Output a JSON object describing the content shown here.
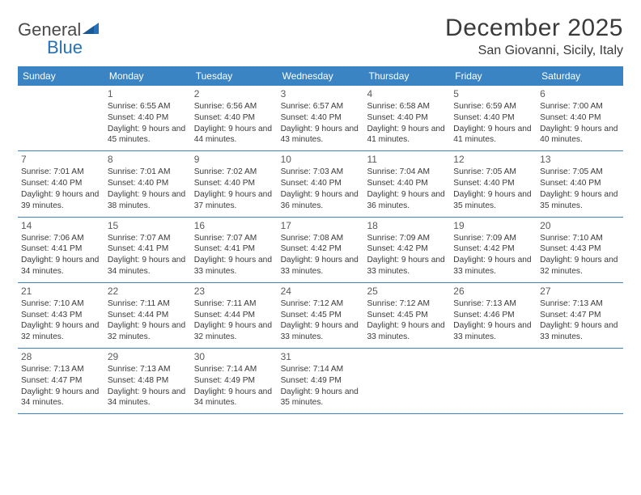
{
  "logo": {
    "part1": "General",
    "part2": "Blue"
  },
  "title": "December 2025",
  "location": "San Giovanni, Sicily, Italy",
  "header_bg": "#3b84c4",
  "day_names": [
    "Sunday",
    "Monday",
    "Tuesday",
    "Wednesday",
    "Thursday",
    "Friday",
    "Saturday"
  ],
  "weeks": [
    [
      {
        "num": "",
        "sr": "",
        "ss": "",
        "dl": ""
      },
      {
        "num": "1",
        "sr": "Sunrise: 6:55 AM",
        "ss": "Sunset: 4:40 PM",
        "dl": "Daylight: 9 hours and 45 minutes."
      },
      {
        "num": "2",
        "sr": "Sunrise: 6:56 AM",
        "ss": "Sunset: 4:40 PM",
        "dl": "Daylight: 9 hours and 44 minutes."
      },
      {
        "num": "3",
        "sr": "Sunrise: 6:57 AM",
        "ss": "Sunset: 4:40 PM",
        "dl": "Daylight: 9 hours and 43 minutes."
      },
      {
        "num": "4",
        "sr": "Sunrise: 6:58 AM",
        "ss": "Sunset: 4:40 PM",
        "dl": "Daylight: 9 hours and 41 minutes."
      },
      {
        "num": "5",
        "sr": "Sunrise: 6:59 AM",
        "ss": "Sunset: 4:40 PM",
        "dl": "Daylight: 9 hours and 41 minutes."
      },
      {
        "num": "6",
        "sr": "Sunrise: 7:00 AM",
        "ss": "Sunset: 4:40 PM",
        "dl": "Daylight: 9 hours and 40 minutes."
      }
    ],
    [
      {
        "num": "7",
        "sr": "Sunrise: 7:01 AM",
        "ss": "Sunset: 4:40 PM",
        "dl": "Daylight: 9 hours and 39 minutes."
      },
      {
        "num": "8",
        "sr": "Sunrise: 7:01 AM",
        "ss": "Sunset: 4:40 PM",
        "dl": "Daylight: 9 hours and 38 minutes."
      },
      {
        "num": "9",
        "sr": "Sunrise: 7:02 AM",
        "ss": "Sunset: 4:40 PM",
        "dl": "Daylight: 9 hours and 37 minutes."
      },
      {
        "num": "10",
        "sr": "Sunrise: 7:03 AM",
        "ss": "Sunset: 4:40 PM",
        "dl": "Daylight: 9 hours and 36 minutes."
      },
      {
        "num": "11",
        "sr": "Sunrise: 7:04 AM",
        "ss": "Sunset: 4:40 PM",
        "dl": "Daylight: 9 hours and 36 minutes."
      },
      {
        "num": "12",
        "sr": "Sunrise: 7:05 AM",
        "ss": "Sunset: 4:40 PM",
        "dl": "Daylight: 9 hours and 35 minutes."
      },
      {
        "num": "13",
        "sr": "Sunrise: 7:05 AM",
        "ss": "Sunset: 4:40 PM",
        "dl": "Daylight: 9 hours and 35 minutes."
      }
    ],
    [
      {
        "num": "14",
        "sr": "Sunrise: 7:06 AM",
        "ss": "Sunset: 4:41 PM",
        "dl": "Daylight: 9 hours and 34 minutes."
      },
      {
        "num": "15",
        "sr": "Sunrise: 7:07 AM",
        "ss": "Sunset: 4:41 PM",
        "dl": "Daylight: 9 hours and 34 minutes."
      },
      {
        "num": "16",
        "sr": "Sunrise: 7:07 AM",
        "ss": "Sunset: 4:41 PM",
        "dl": "Daylight: 9 hours and 33 minutes."
      },
      {
        "num": "17",
        "sr": "Sunrise: 7:08 AM",
        "ss": "Sunset: 4:42 PM",
        "dl": "Daylight: 9 hours and 33 minutes."
      },
      {
        "num": "18",
        "sr": "Sunrise: 7:09 AM",
        "ss": "Sunset: 4:42 PM",
        "dl": "Daylight: 9 hours and 33 minutes."
      },
      {
        "num": "19",
        "sr": "Sunrise: 7:09 AM",
        "ss": "Sunset: 4:42 PM",
        "dl": "Daylight: 9 hours and 33 minutes."
      },
      {
        "num": "20",
        "sr": "Sunrise: 7:10 AM",
        "ss": "Sunset: 4:43 PM",
        "dl": "Daylight: 9 hours and 32 minutes."
      }
    ],
    [
      {
        "num": "21",
        "sr": "Sunrise: 7:10 AM",
        "ss": "Sunset: 4:43 PM",
        "dl": "Daylight: 9 hours and 32 minutes."
      },
      {
        "num": "22",
        "sr": "Sunrise: 7:11 AM",
        "ss": "Sunset: 4:44 PM",
        "dl": "Daylight: 9 hours and 32 minutes."
      },
      {
        "num": "23",
        "sr": "Sunrise: 7:11 AM",
        "ss": "Sunset: 4:44 PM",
        "dl": "Daylight: 9 hours and 32 minutes."
      },
      {
        "num": "24",
        "sr": "Sunrise: 7:12 AM",
        "ss": "Sunset: 4:45 PM",
        "dl": "Daylight: 9 hours and 33 minutes."
      },
      {
        "num": "25",
        "sr": "Sunrise: 7:12 AM",
        "ss": "Sunset: 4:45 PM",
        "dl": "Daylight: 9 hours and 33 minutes."
      },
      {
        "num": "26",
        "sr": "Sunrise: 7:13 AM",
        "ss": "Sunset: 4:46 PM",
        "dl": "Daylight: 9 hours and 33 minutes."
      },
      {
        "num": "27",
        "sr": "Sunrise: 7:13 AM",
        "ss": "Sunset: 4:47 PM",
        "dl": "Daylight: 9 hours and 33 minutes."
      }
    ],
    [
      {
        "num": "28",
        "sr": "Sunrise: 7:13 AM",
        "ss": "Sunset: 4:47 PM",
        "dl": "Daylight: 9 hours and 34 minutes."
      },
      {
        "num": "29",
        "sr": "Sunrise: 7:13 AM",
        "ss": "Sunset: 4:48 PM",
        "dl": "Daylight: 9 hours and 34 minutes."
      },
      {
        "num": "30",
        "sr": "Sunrise: 7:14 AM",
        "ss": "Sunset: 4:49 PM",
        "dl": "Daylight: 9 hours and 34 minutes."
      },
      {
        "num": "31",
        "sr": "Sunrise: 7:14 AM",
        "ss": "Sunset: 4:49 PM",
        "dl": "Daylight: 9 hours and 35 minutes."
      },
      {
        "num": "",
        "sr": "",
        "ss": "",
        "dl": ""
      },
      {
        "num": "",
        "sr": "",
        "ss": "",
        "dl": ""
      },
      {
        "num": "",
        "sr": "",
        "ss": "",
        "dl": ""
      }
    ]
  ]
}
